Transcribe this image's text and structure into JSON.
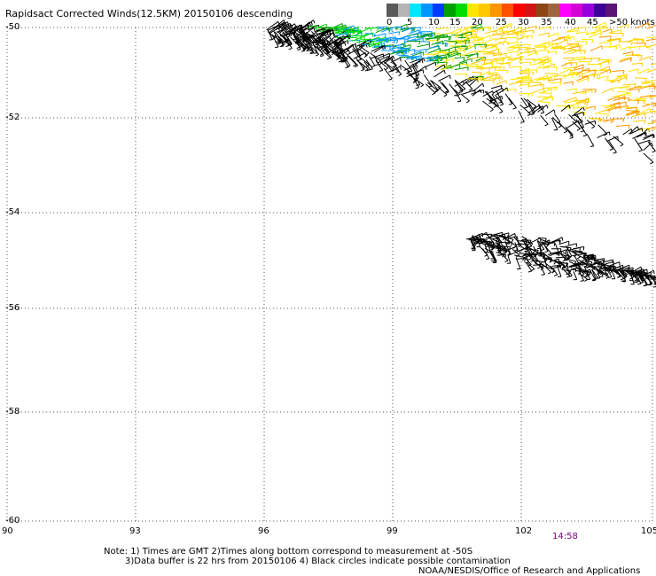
{
  "title": "Rapidsact Corrected Winds(12.5KM) 20150106 descending",
  "legend": {
    "colors": [
      "#5a5a5a",
      "#b4b4b4",
      "#00e6ff",
      "#0096ff",
      "#003cff",
      "#00a000",
      "#00dc00",
      "#ffe600",
      "#ffc800",
      "#ff9600",
      "#ff5000",
      "#ff0000",
      "#d21414",
      "#8c4614",
      "#a0643c",
      "#ff00ff",
      "#d200d2",
      "#9600dc",
      "#3c0096",
      "#5a1478"
    ],
    "labels": [
      "0",
      "5",
      "10",
      "15",
      "20",
      "25",
      "30",
      "35",
      "40",
      "45",
      ">50 knots"
    ]
  },
  "map": {
    "lon_labels": [
      "90",
      "93",
      "96",
      "99",
      "102",
      "105"
    ],
    "lat_labels": [
      "-50",
      "-52",
      "-54",
      "-56",
      "-58",
      "-60"
    ]
  },
  "swaths": [
    {
      "name": "northern-swath",
      "barb_color": "#000000",
      "length_knots_range": [
        15,
        45
      ]
    },
    {
      "name": "southern-swath",
      "barb_color": "#000000",
      "length_knots_range": [
        20,
        40
      ]
    }
  ],
  "time_label": "14:58",
  "notes": {
    "line1": "Note: 1) Times are GMT 2)Times along bottom correspond to measurement at -50S",
    "line2": "3)Data buffer is 22 hrs from 20150106 4) Black circles indicate possible contamination"
  },
  "credit": "NOAA/NESDIS/Office of Research and Applications"
}
